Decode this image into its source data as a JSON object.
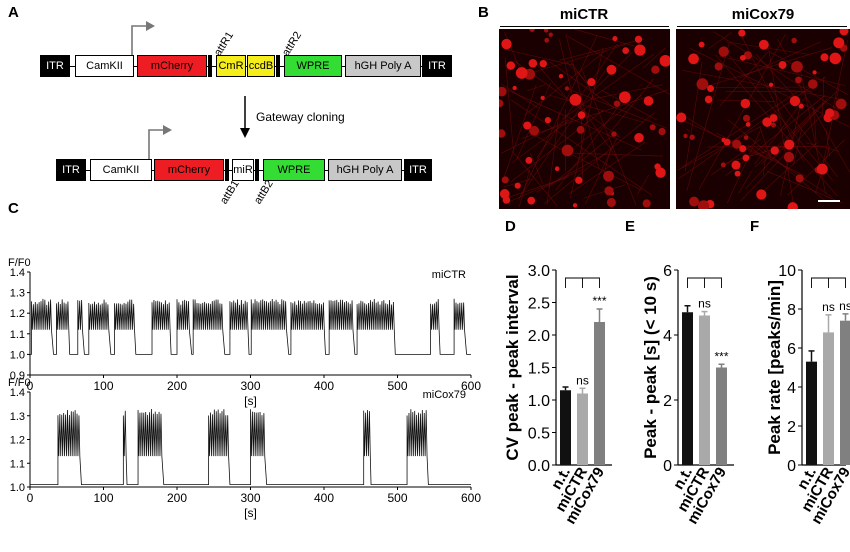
{
  "panels": {
    "a": "A",
    "b": "B",
    "c": "C",
    "d": "D",
    "e": "E",
    "f": "F"
  },
  "construct_top": {
    "itr_left": "ITR",
    "camk": "CamKII",
    "mcherry": "mCherry",
    "cmr": "CmR",
    "ccdb": "ccdB",
    "wpre": "WPRE",
    "hgh": "hGH Poly A",
    "itr_right": "ITR",
    "att1": "attR1",
    "att2": "attR2"
  },
  "cloning_label": "Gateway cloning",
  "construct_bottom": {
    "itr_left": "ITR",
    "camk": "CamKII",
    "mcherry": "mCherry",
    "mir": "miR",
    "wpre": "WPRE",
    "hgh": "hGH Poly A",
    "itr_right": "ITR",
    "att1": "attB1",
    "att2": "attB2"
  },
  "micrographs": {
    "left_title": "miCTR",
    "right_title": "miCox79"
  },
  "chart_data": [
    {
      "type": "line",
      "panel": "C",
      "series_label": "miCTR",
      "ylabel": "F/F0",
      "xlabel": "[s]",
      "xlim": [
        0,
        600
      ],
      "ylim": [
        0.9,
        1.4
      ],
      "xticks": [
        "0",
        "100",
        "200",
        "300",
        "400",
        "500",
        "600"
      ],
      "yticks": [
        "0.9",
        "1.0",
        "1.1",
        "1.2",
        "1.3",
        "1.4"
      ],
      "baseline": 1.0,
      "peak_level": 1.27,
      "bursts_s": [
        [
          2,
          30
        ],
        [
          36,
          52
        ],
        [
          65,
          72
        ],
        [
          80,
          108
        ],
        [
          115,
          142
        ],
        [
          166,
          190
        ],
        [
          200,
          218
        ],
        [
          222,
          263
        ],
        [
          272,
          296
        ],
        [
          301,
          350
        ],
        [
          355,
          400
        ],
        [
          407,
          440
        ],
        [
          445,
          495
        ],
        [
          545,
          556
        ],
        [
          577,
          592
        ]
      ]
    },
    {
      "type": "line",
      "panel": "C",
      "series_label": "miCox79",
      "ylabel": "F/F0",
      "xlabel": "[s]",
      "xlim": [
        0,
        600
      ],
      "ylim": [
        1.0,
        1.4
      ],
      "xticks": [
        "0",
        "100",
        "200",
        "300",
        "400",
        "500",
        "600"
      ],
      "yticks": [
        "1.0",
        "1.1",
        "1.2",
        "1.3",
        "1.4"
      ],
      "baseline": 1.01,
      "peak_level": 1.33,
      "bursts_s": [
        [
          38,
          68
        ],
        [
          127,
          130
        ],
        [
          147,
          180
        ],
        [
          243,
          270
        ],
        [
          300,
          320
        ],
        [
          454,
          462
        ],
        [
          513,
          540
        ]
      ]
    },
    {
      "type": "bar",
      "panel": "D",
      "ylabel": "CV peak - peak interval",
      "categories": [
        "n.t.",
        "miCTR",
        "miCox79"
      ],
      "values": [
        1.15,
        1.1,
        2.2
      ],
      "errors": [
        0.05,
        0.08,
        0.2
      ],
      "ylim": [
        0.0,
        3.0
      ],
      "yticks": [
        "0.0",
        "0.5",
        "1.0",
        "1.5",
        "2.0",
        "2.5",
        "3.0"
      ],
      "colors": [
        "#111111",
        "#a9a9a9",
        "#808080"
      ],
      "annotations": [
        "",
        "ns",
        "***"
      ]
    },
    {
      "type": "bar",
      "panel": "E",
      "ylabel": "Peak - peak [s] (< 10 s)",
      "categories": [
        "n.t.",
        "miCTR",
        "miCox79"
      ],
      "values": [
        4.7,
        4.6,
        3.0
      ],
      "errors": [
        0.2,
        0.12,
        0.1
      ],
      "ylim": [
        0,
        6
      ],
      "yticks": [
        "0",
        "2",
        "4",
        "6"
      ],
      "colors": [
        "#111111",
        "#a9a9a9",
        "#808080"
      ],
      "annotations": [
        "",
        "ns",
        "***"
      ]
    },
    {
      "type": "bar",
      "panel": "F",
      "ylabel": "Peak rate [peaks/min]",
      "categories": [
        "n.t.",
        "miCTR",
        "miCox79"
      ],
      "values": [
        5.3,
        6.8,
        7.4
      ],
      "errors": [
        0.55,
        0.9,
        0.35
      ],
      "ylim": [
        0,
        10
      ],
      "yticks": [
        "0",
        "2",
        "4",
        "6",
        "8",
        "10"
      ],
      "colors": [
        "#111111",
        "#a9a9a9",
        "#808080"
      ],
      "annotations": [
        "",
        "ns",
        "ns"
      ]
    }
  ]
}
